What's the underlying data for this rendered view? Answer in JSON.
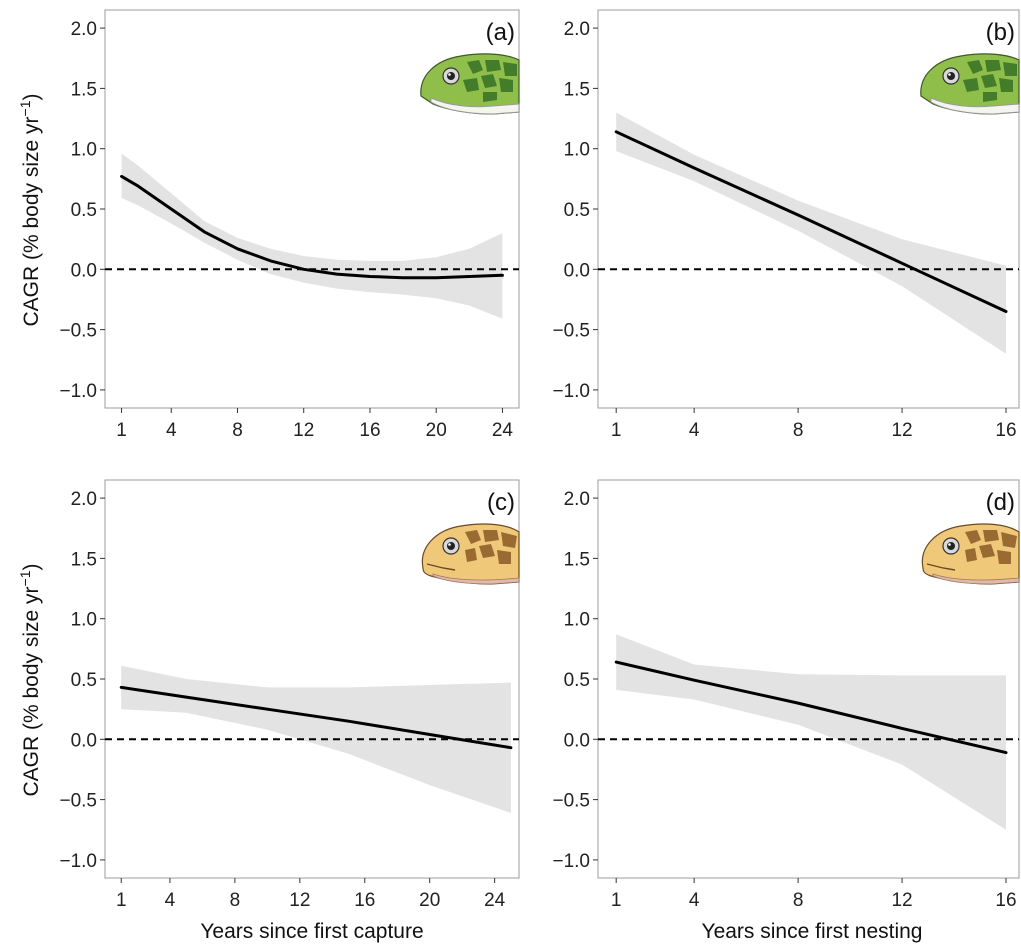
{
  "figure": {
    "ylabel_main": "CAGR (% body size yr",
    "ylabel_sup": "−1",
    "ylabel_close": ")",
    "xlabel_left": "Years since first capture",
    "xlabel_right": "Years since first nesting"
  },
  "colors": {
    "band": "#e3e3e3",
    "line": "#000000",
    "frame": "#9e9e9e",
    "green_turtle_skin": "#8fbf4a",
    "green_turtle_scale": "#2f6b22",
    "hawksbill_skin": "#f0c879",
    "hawksbill_scale": "#8a5a26"
  },
  "chart_data": [
    {
      "type": "line",
      "panel": "(a)",
      "icon": "green-turtle-head-icon",
      "xlim": [
        0,
        25
      ],
      "ylim": [
        -1.15,
        2.15
      ],
      "xticks": [
        1,
        4,
        8,
        12,
        16,
        20,
        24
      ],
      "yticks": [
        -1.0,
        -0.5,
        0.0,
        0.5,
        1.0,
        1.5,
        2.0
      ],
      "ytick_labels": [
        "−1.0",
        "−0.5",
        "0.0",
        "0.5",
        "1.0",
        "1.5",
        "2.0"
      ],
      "reference_line": 0,
      "x": [
        1,
        2,
        4,
        6,
        8,
        10,
        12,
        14,
        16,
        18,
        20,
        22,
        24
      ],
      "y": [
        0.77,
        0.69,
        0.5,
        0.31,
        0.17,
        0.07,
        0.0,
        -0.04,
        -0.06,
        -0.07,
        -0.07,
        -0.06,
        -0.05
      ],
      "lower": [
        0.59,
        0.53,
        0.38,
        0.22,
        0.08,
        -0.04,
        -0.11,
        -0.16,
        -0.19,
        -0.21,
        -0.24,
        -0.3,
        -0.41
      ],
      "upper": [
        0.96,
        0.86,
        0.63,
        0.4,
        0.26,
        0.17,
        0.11,
        0.08,
        0.07,
        0.07,
        0.1,
        0.17,
        0.3
      ]
    },
    {
      "type": "line",
      "panel": "(b)",
      "icon": "green-turtle-head-icon",
      "xlim": [
        0.3,
        16.5
      ],
      "ylim": [
        -1.15,
        2.15
      ],
      "xticks": [
        1,
        4,
        8,
        12,
        16
      ],
      "yticks": [
        -1.0,
        -0.5,
        0.0,
        0.5,
        1.0,
        1.5,
        2.0
      ],
      "ytick_labels": [
        "−1.0",
        "−0.5",
        "0.0",
        "0.5",
        "1.0",
        "1.5",
        "2.0"
      ],
      "reference_line": 0,
      "x": [
        1,
        4,
        8,
        12,
        16
      ],
      "y": [
        1.14,
        0.84,
        0.45,
        0.05,
        -0.35
      ],
      "lower": [
        0.98,
        0.73,
        0.32,
        -0.14,
        -0.7
      ],
      "upper": [
        1.3,
        0.95,
        0.57,
        0.25,
        0.03
      ]
    },
    {
      "type": "line",
      "panel": "(c)",
      "icon": "hawksbill-turtle-head-icon",
      "xlim": [
        0,
        25.5
      ],
      "ylim": [
        -1.15,
        2.15
      ],
      "xticks": [
        1,
        4,
        8,
        12,
        16,
        20,
        24
      ],
      "yticks": [
        -1.0,
        -0.5,
        0.0,
        0.5,
        1.0,
        1.5,
        2.0
      ],
      "ytick_labels": [
        "−1.0",
        "−0.5",
        "0.0",
        "0.5",
        "1.0",
        "1.5",
        "2.0"
      ],
      "reference_line": 0,
      "x": [
        1,
        5,
        10,
        15,
        20,
        25
      ],
      "y": [
        0.43,
        0.35,
        0.25,
        0.15,
        0.04,
        -0.07
      ],
      "lower": [
        0.25,
        0.22,
        0.08,
        -0.12,
        -0.38,
        -0.61
      ],
      "upper": [
        0.61,
        0.5,
        0.43,
        0.43,
        0.45,
        0.47
      ]
    },
    {
      "type": "line",
      "panel": "(d)",
      "icon": "hawksbill-turtle-head-icon",
      "xlim": [
        0.3,
        16.5
      ],
      "ylim": [
        -1.15,
        2.15
      ],
      "xticks": [
        1,
        4,
        8,
        12,
        16
      ],
      "yticks": [
        -1.0,
        -0.5,
        0.0,
        0.5,
        1.0,
        1.5,
        2.0
      ],
      "ytick_labels": [
        "−1.0",
        "−0.5",
        "0.0",
        "0.5",
        "1.0",
        "1.5",
        "2.0"
      ],
      "reference_line": 0,
      "x": [
        1,
        4,
        8,
        12,
        16
      ],
      "y": [
        0.64,
        0.49,
        0.3,
        0.09,
        -0.11
      ],
      "lower": [
        0.41,
        0.33,
        0.12,
        -0.21,
        -0.75
      ],
      "upper": [
        0.87,
        0.62,
        0.54,
        0.53,
        0.53
      ]
    }
  ]
}
